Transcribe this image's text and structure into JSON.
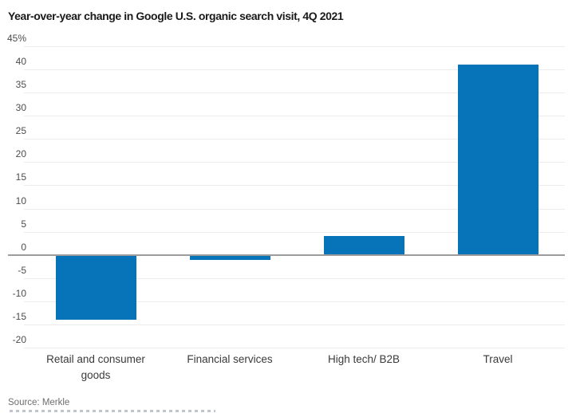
{
  "title": "Year-over-year change in Google U.S. organic search visit, 4Q 2021",
  "source": "Source: Merkle",
  "colors": {
    "bar": "#0773b8",
    "gridline": "#ececec",
    "zero_line": "#9c9c9c",
    "title_text": "#1a1a1a",
    "tick_text": "#4d4d4d",
    "category_text": "#3a3a3a",
    "source_text": "#6e6e6e",
    "background": "#ffffff"
  },
  "chart_data": {
    "type": "bar",
    "title": "Year-over-year change in Google U.S. organic search visit, 4Q 2021",
    "categories": [
      "Retail and consumer goods",
      "Financial services",
      "High tech/ B2B",
      "Travel"
    ],
    "values": [
      -14,
      -1,
      4,
      41
    ],
    "unit": "percent",
    "xlabel": "",
    "ylabel": "",
    "ylim": [
      -20,
      45
    ],
    "ytick_step": 5,
    "ytick_values": [
      45,
      40,
      35,
      30,
      25,
      20,
      15,
      10,
      5,
      0,
      -5,
      -10,
      -15,
      -20
    ],
    "ytick_labels": [
      "45%",
      "40",
      "35",
      "30",
      "25",
      "20",
      "15",
      "10",
      "5",
      "0",
      "-5",
      "-10",
      "-15",
      "-20"
    ],
    "grid": true,
    "legend": "none",
    "source": "Source: Merkle"
  }
}
